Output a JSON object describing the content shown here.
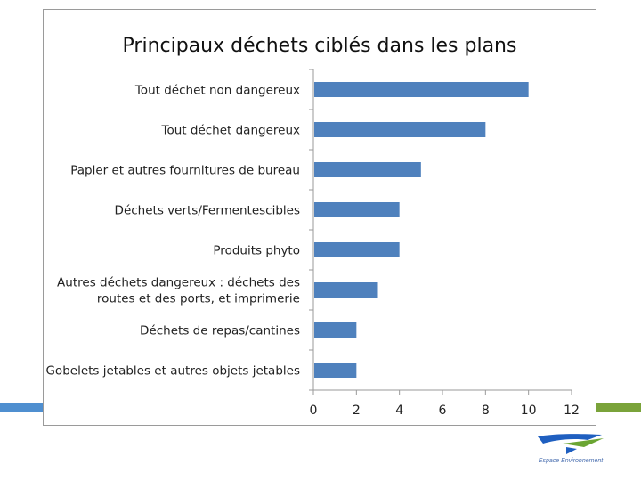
{
  "colors": {
    "bar": "#4f81bd",
    "band_left": "#4f8fd0",
    "band_right": "#7aa33a",
    "axis": "#9a9a9a",
    "label": "#222222",
    "logo_blue": "#1f5fc0",
    "logo_green": "#6aa532"
  },
  "chart_data": {
    "type": "bar",
    "orientation": "horizontal",
    "title": "Principaux déchets ciblés dans les plans",
    "xlabel": "",
    "ylabel": "",
    "xlim": [
      0,
      12
    ],
    "x_ticks": [
      "0",
      "2",
      "4",
      "6",
      "8",
      "10",
      "12"
    ],
    "grid": false,
    "legend": "none",
    "categories": [
      [
        "Tout déchet non dangereux"
      ],
      [
        "Tout déchet dangereux"
      ],
      [
        "Papier et autres fournitures de bureau"
      ],
      [
        "Déchets verts/Fermentescibles"
      ],
      [
        "Produits phyto"
      ],
      [
        "Autres déchets dangereux : déchets des",
        "routes et des ports, et imprimerie"
      ],
      [
        "Déchets de repas/cantines"
      ],
      [
        "Gobelets jetables et autres objets jetables"
      ]
    ],
    "values": [
      10,
      8,
      5,
      4,
      4,
      3,
      2,
      2
    ]
  },
  "logo": {
    "icon": "espace-environnement-logo",
    "caption": "Espace Environnement"
  }
}
